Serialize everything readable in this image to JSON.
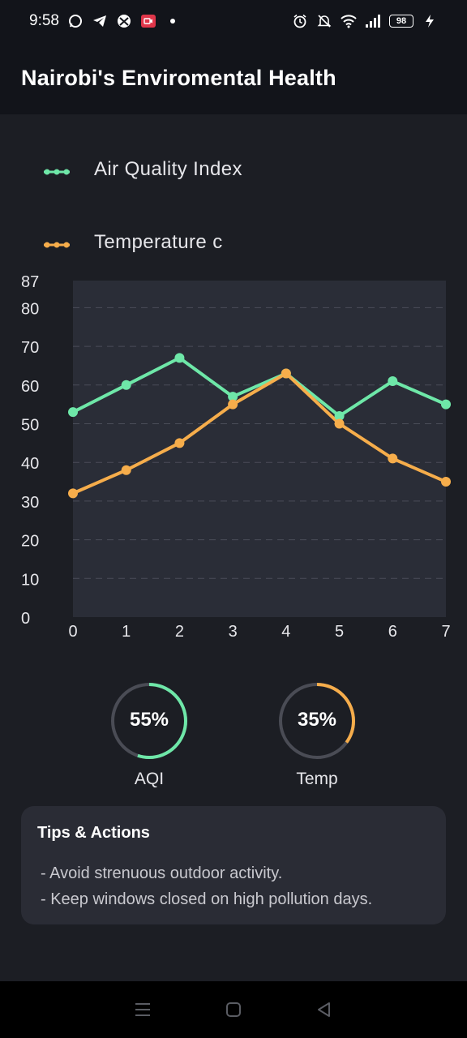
{
  "status_bar": {
    "time": "9:58",
    "battery": "98",
    "left_icons": [
      "whatsapp-icon",
      "telegram-icon",
      "xbox-icon",
      "record-icon",
      "dot-icon"
    ],
    "right_icons": [
      "alarm-icon",
      "mute-icon",
      "wifi-icon",
      "signal-icon",
      "battery-icon",
      "charging-icon"
    ]
  },
  "app_bar": {
    "title": "Nairobi's Enviromental Health"
  },
  "chart_data": {
    "type": "line",
    "x": [
      0,
      1,
      2,
      3,
      4,
      5,
      6,
      7
    ],
    "series": [
      {
        "name": "Air Quality Index",
        "color": "#6ee7a8",
        "values": [
          53,
          60,
          67,
          57,
          63,
          52,
          61,
          55
        ]
      },
      {
        "name": "Temperature c",
        "color": "#f6ad4b",
        "values": [
          32,
          38,
          45,
          55,
          63,
          50,
          41,
          35
        ]
      }
    ],
    "ylim": [
      0,
      87
    ],
    "yticks": [
      0,
      10,
      20,
      30,
      40,
      50,
      60,
      70,
      80,
      87
    ],
    "xticks": [
      0,
      1,
      2,
      3,
      4,
      5,
      6,
      7
    ],
    "grid": true,
    "legend": "top",
    "xlabel": "",
    "ylabel": ""
  },
  "gauges": [
    {
      "value": "55%",
      "fraction": 0.55,
      "label": "AQI",
      "color": "#6ee7a8"
    },
    {
      "value": "35%",
      "fraction": 0.35,
      "label": "Temp",
      "color": "#f6ad4b"
    }
  ],
  "tips": {
    "title": "Tips & Actions",
    "items": [
      "- Avoid strenuous outdoor activity.",
      "- Keep windows closed on high pollution days."
    ]
  },
  "nav_bar": {
    "icons": [
      "menu-icon",
      "home-icon",
      "back-icon"
    ]
  }
}
